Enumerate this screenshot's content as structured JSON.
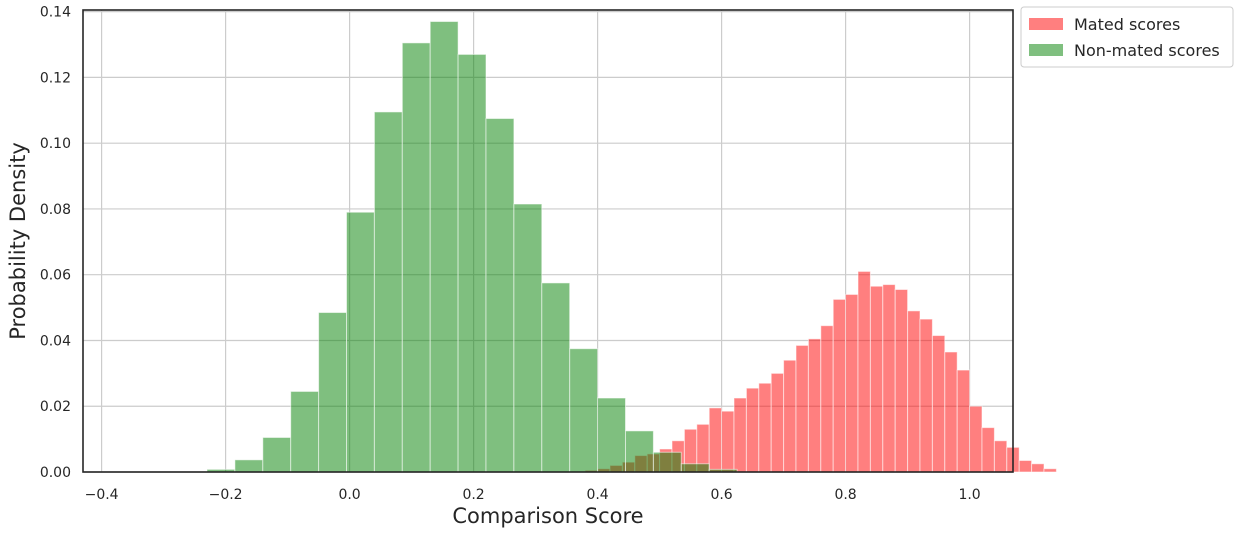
{
  "chart_data": {
    "type": "bar",
    "title": "",
    "xlabel": "Comparison Score",
    "ylabel": "Probability Density",
    "xlim": [
      -0.43,
      1.07
    ],
    "ylim": [
      0,
      0.1405
    ],
    "xticks": [
      -0.4,
      -0.2,
      0.0,
      0.2,
      0.4,
      0.6,
      0.8,
      1.0
    ],
    "xtick_labels": [
      "−0.4",
      "−0.2",
      "0.0",
      "0.2",
      "0.4",
      "0.6",
      "0.8",
      "1.0"
    ],
    "yticks": [
      0.0,
      0.02,
      0.04,
      0.06,
      0.08,
      0.1,
      0.12,
      0.14
    ],
    "ytick_labels": [
      "0.00",
      "0.02",
      "0.04",
      "0.06",
      "0.08",
      "0.10",
      "0.12",
      "0.14"
    ],
    "grid": true,
    "legend_position": "outside-top-right",
    "series": [
      {
        "name": "Mated scores",
        "color": "#ff0000",
        "alpha": 0.5,
        "bin_start": 0.38,
        "bin_width": 0.02,
        "values": [
          0.0005,
          0.001,
          0.002,
          0.003,
          0.005,
          0.0055,
          0.007,
          0.0095,
          0.013,
          0.0145,
          0.0195,
          0.0185,
          0.0225,
          0.0255,
          0.027,
          0.03,
          0.034,
          0.0385,
          0.0405,
          0.0445,
          0.0525,
          0.054,
          0.061,
          0.0565,
          0.057,
          0.0555,
          0.049,
          0.0465,
          0.0415,
          0.0365,
          0.031,
          0.02,
          0.0135,
          0.0095,
          0.0075,
          0.0035,
          0.0025,
          0.001
        ]
      },
      {
        "name": "Non-mated scores",
        "color": "#008000",
        "alpha": 0.5,
        "bin_start": -0.23,
        "bin_width": 0.045,
        "values": [
          0.0008,
          0.0037,
          0.0105,
          0.0245,
          0.0485,
          0.079,
          0.1095,
          0.1305,
          0.137,
          0.127,
          0.1075,
          0.0815,
          0.0575,
          0.0375,
          0.0225,
          0.0125,
          0.006,
          0.0025,
          0.0008
        ]
      }
    ]
  },
  "legend": {
    "items": [
      {
        "label": "Mated scores",
        "color": "#ff0000"
      },
      {
        "label": "Non-mated scores",
        "color": "#008000"
      }
    ]
  }
}
